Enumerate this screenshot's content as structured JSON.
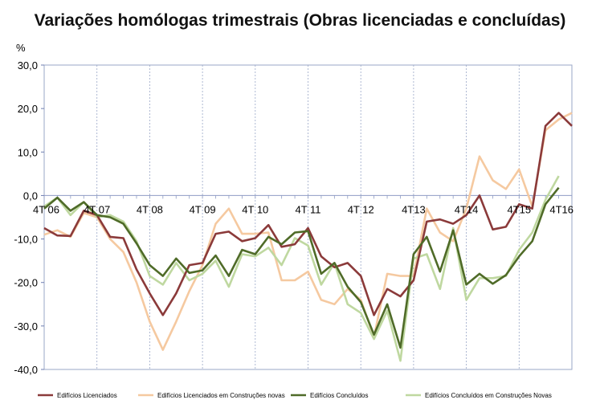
{
  "chart_data": {
    "type": "line",
    "title": "Variações homólogas trimestrais (Obras licenciadas e concluídas)",
    "ylabel": "%",
    "ylim": [
      -40,
      30
    ],
    "yticks": [
      "30,0",
      "20,0",
      "10,0",
      "0,0",
      "-10,0",
      "-20,0",
      "-30,0",
      "-40,0"
    ],
    "ytick_values": [
      30,
      20,
      10,
      0,
      -10,
      -20,
      -30,
      -40
    ],
    "x_count": 41,
    "xtick_labels": [
      "4T 06",
      "4T 07",
      "4T 08",
      "4T 09",
      "4T 10",
      "4T 11",
      "4T 12",
      "4T13",
      "4T14",
      "4T15",
      "4T16"
    ],
    "xtick_index": [
      0,
      4,
      8,
      12,
      16,
      20,
      24,
      28,
      32,
      36,
      40
    ],
    "grid": "vertical",
    "legend_position": "bottom",
    "series": [
      {
        "name": "Edifícios Licenciados",
        "color": "#8b3a3a",
        "values": [
          -7.5,
          -9.2,
          -9.3,
          -3.5,
          -4.5,
          -9.5,
          -9.8,
          -17,
          -22.5,
          -27.5,
          -22.5,
          -16,
          -15.5,
          -8.8,
          -8.3,
          -10.5,
          -9.8,
          -6.8,
          -11.8,
          -11.2,
          -7.5,
          -14,
          -16.5,
          -15.5,
          -18.5,
          -27.5,
          -21.5,
          -23.2,
          -19.5,
          -6,
          -5.5,
          -6.5,
          -4.5,
          0,
          -7.8,
          -7.2,
          -2,
          -3,
          16,
          19,
          16
        ]
      },
      {
        "name": "Edifícios Licenciados em Construções novas",
        "color": "#f5c9a0",
        "values": [
          -9,
          -8,
          -9.5,
          -4,
          -5,
          -10,
          -13,
          -20,
          -29,
          -35.5,
          -29,
          -22,
          -16,
          -6.5,
          -3,
          -8.8,
          -8.8,
          -8.5,
          -19.5,
          -19.5,
          -17.5,
          -24,
          -25,
          -21.5,
          -24,
          -32.5,
          -18,
          -18.5,
          -18.5,
          -3,
          -8.5,
          -10.5,
          -3,
          9,
          3.5,
          1.5,
          6,
          -2.5,
          15,
          17.5,
          19
        ]
      },
      {
        "name": "Edifícios Concluídos",
        "color": "#4f6b28",
        "values": [
          -3,
          -0.5,
          -3.5,
          -1.5,
          -4.5,
          -5,
          -6.5,
          -11,
          -16,
          -18.5,
          -14.5,
          -17.8,
          -17.2,
          -13.8,
          -18.5,
          -12.5,
          -13.5,
          -9.5,
          -11.2,
          -8.5,
          -8.2,
          -18,
          -15.5,
          -21,
          -24.5,
          -32,
          -25,
          -35,
          -13.5,
          -9.5,
          -17.5,
          -8,
          -20.5,
          -18,
          -20.3,
          -18.3,
          -14,
          -10.5,
          -2,
          1.8
        ]
      },
      {
        "name": "Edifícios Concluídos em Construções Novas",
        "color": "#bfd8a0",
        "values": [
          -2.5,
          -0.5,
          -4.5,
          -1.5,
          -5,
          -4.5,
          -6,
          -10.5,
          -18.5,
          -20.5,
          -15.5,
          -19.5,
          -18,
          -15,
          -21,
          -13.5,
          -14,
          -12,
          -16,
          -9.8,
          -11.5,
          -20.5,
          -15.5,
          -25,
          -27,
          -33,
          -26.5,
          -38,
          -14.5,
          -13.5,
          -21.5,
          -7.5,
          -24,
          -19,
          -19,
          -18.5,
          -12.5,
          -8.5,
          -1,
          4.5
        ]
      }
    ]
  }
}
